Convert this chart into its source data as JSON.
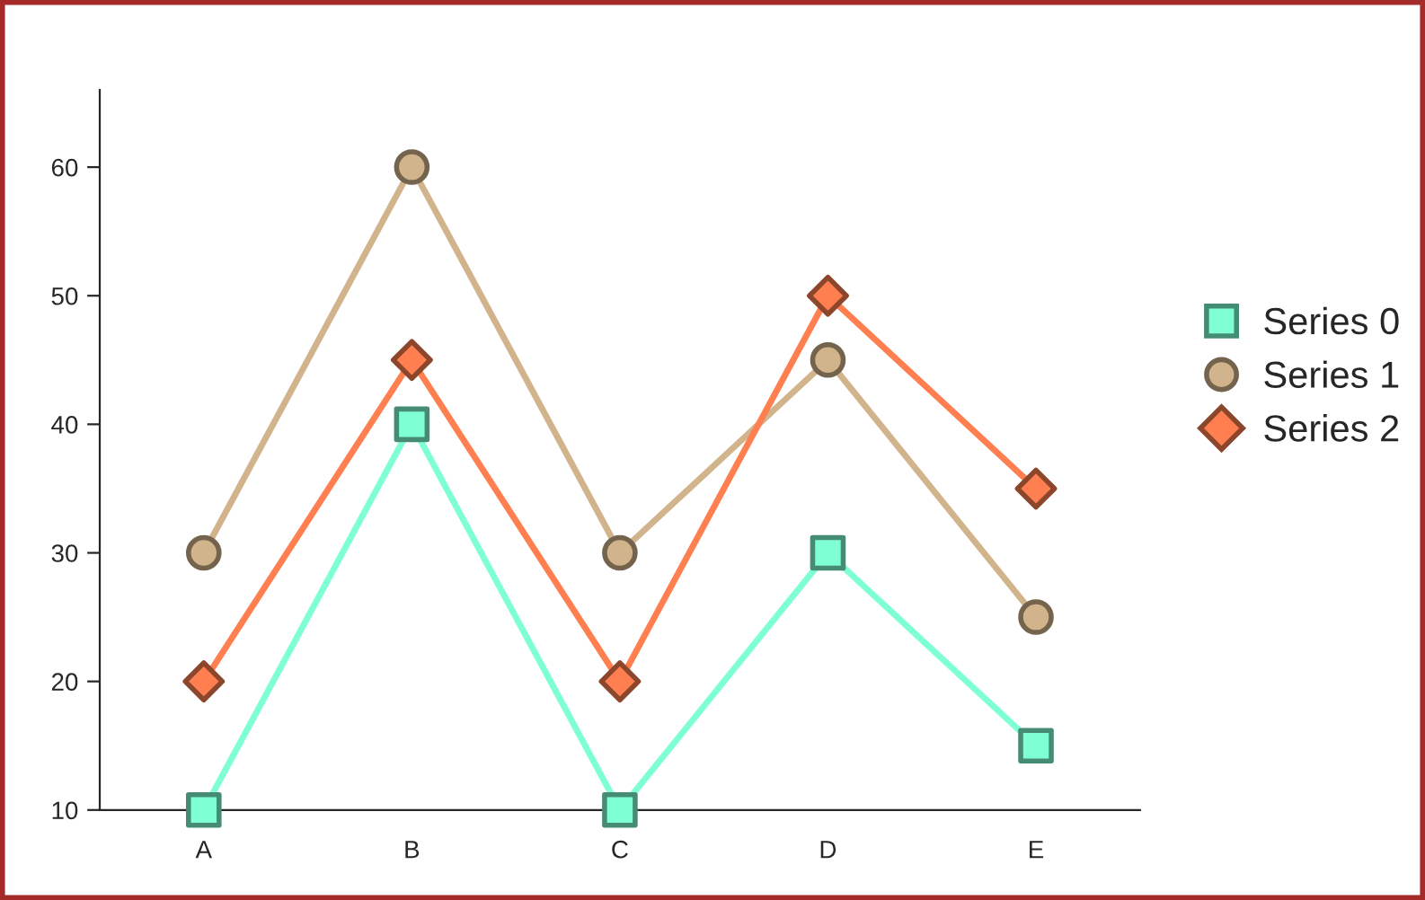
{
  "chart_data": {
    "type": "line",
    "categories": [
      "A",
      "B",
      "C",
      "D",
      "E"
    ],
    "series": [
      {
        "name": "Series 0",
        "color": "#7fffd4",
        "marker": "square",
        "values": [
          10,
          40,
          10,
          30,
          15
        ]
      },
      {
        "name": "Series 1",
        "color": "#d2b48c",
        "marker": "circle",
        "values": [
          30,
          60,
          30,
          45,
          25
        ]
      },
      {
        "name": "Series 2",
        "color": "#ff7f50",
        "marker": "diamond",
        "values": [
          20,
          45,
          20,
          50,
          35
        ]
      }
    ],
    "ylim": [
      10,
      66
    ],
    "yticks": [
      10,
      20,
      30,
      40,
      50,
      60
    ],
    "grid": false,
    "legend": "right"
  }
}
